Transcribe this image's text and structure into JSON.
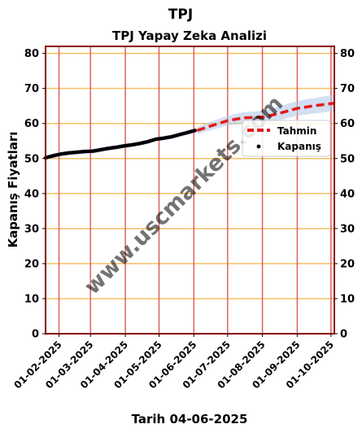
{
  "chart_data": {
    "type": "line",
    "suptitle": "TPJ",
    "title": "TPJ Yapay Zeka Analizi",
    "xlabel": "Tarih 04-06-2025",
    "ylabel": "Kapanış Fiyatları",
    "ylim": [
      0,
      82
    ],
    "yticks": [
      0,
      10,
      20,
      30,
      40,
      50,
      60,
      70,
      80
    ],
    "xlim": [
      "2025-01-20",
      "2025-10-04"
    ],
    "xticks": [
      "01-02-2025",
      "01-03-2025",
      "01-04-2025",
      "01-05-2025",
      "01-06-2025",
      "01-07-2025",
      "01-08-2025",
      "01-09-2025",
      "01-10-2025"
    ],
    "grid": true,
    "legend": {
      "position": "right",
      "entries": [
        "Tahmin",
        "Kapanış"
      ]
    },
    "watermark": "www.uscmarkets.com",
    "series": [
      {
        "name": "Kapanış",
        "style": "scatter",
        "color": "#000000",
        "points": [
          [
            "2025-01-20",
            50.2
          ],
          [
            "2025-01-27",
            50.8
          ],
          [
            "2025-02-03",
            51.3
          ],
          [
            "2025-02-10",
            51.6
          ],
          [
            "2025-02-17",
            51.8
          ],
          [
            "2025-02-24",
            52.0
          ],
          [
            "2025-03-03",
            52.1
          ],
          [
            "2025-03-10",
            52.5
          ],
          [
            "2025-03-17",
            52.9
          ],
          [
            "2025-03-24",
            53.2
          ],
          [
            "2025-03-31",
            53.6
          ],
          [
            "2025-04-07",
            53.9
          ],
          [
            "2025-04-14",
            54.3
          ],
          [
            "2025-04-21",
            54.8
          ],
          [
            "2025-04-28",
            55.5
          ],
          [
            "2025-05-05",
            55.8
          ],
          [
            "2025-05-12",
            56.2
          ],
          [
            "2025-05-19",
            56.8
          ],
          [
            "2025-05-26",
            57.4
          ],
          [
            "2025-06-02",
            58.0
          ]
        ]
      },
      {
        "name": "Tahmin",
        "style": "dashed-line",
        "color": "#e31a1c",
        "points": [
          [
            "2025-06-04",
            58.0
          ],
          [
            "2025-06-15",
            59.2
          ],
          [
            "2025-07-01",
            60.8
          ],
          [
            "2025-07-15",
            61.6
          ],
          [
            "2025-08-01",
            61.8
          ],
          [
            "2025-08-15",
            62.8
          ],
          [
            "2025-09-01",
            64.3
          ],
          [
            "2025-09-15",
            65.0
          ],
          [
            "2025-10-04",
            65.8
          ]
        ]
      }
    ],
    "band": {
      "color": "#aec7e8",
      "points": [
        [
          "2025-06-04",
          57.0,
          59.0
        ],
        [
          "2025-06-15",
          58.0,
          60.4
        ],
        [
          "2025-07-01",
          59.4,
          62.2
        ],
        [
          "2025-07-15",
          60.0,
          63.2
        ],
        [
          "2025-08-01",
          60.0,
          63.6
        ],
        [
          "2025-08-15",
          60.8,
          64.8
        ],
        [
          "2025-09-01",
          62.2,
          66.4
        ],
        [
          "2025-09-15",
          62.8,
          67.2
        ],
        [
          "2025-10-04",
          63.5,
          68.2
        ]
      ]
    },
    "colors": {
      "frame": "#8b0000",
      "hgrid": "#f5c060",
      "vgrid": "#e06060",
      "history_band": "#8a70d0"
    }
  }
}
